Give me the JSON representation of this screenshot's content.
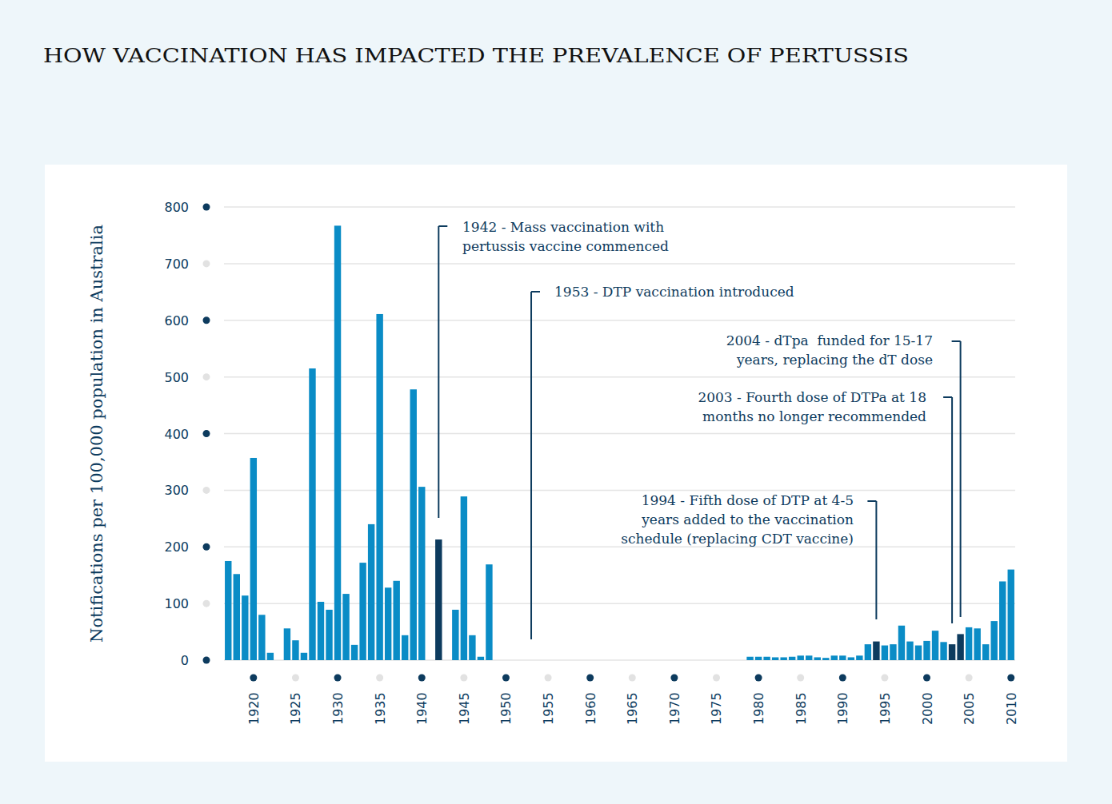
{
  "chart_data": {
    "type": "bar",
    "title": "HOW VACCINATION HAS IMPACTED THE PREVALENCE OF PERTUSSIS",
    "y_label": "Notifications per 100,000 population in Australia",
    "x": [
      1917,
      1918,
      1919,
      1920,
      1921,
      1922,
      1923,
      1924,
      1925,
      1926,
      1927,
      1928,
      1929,
      1930,
      1931,
      1932,
      1933,
      1934,
      1935,
      1936,
      1937,
      1938,
      1939,
      1940,
      1941,
      1942,
      1943,
      1944,
      1945,
      1946,
      1947,
      1948,
      1949,
      1950,
      1951,
      1952,
      1953,
      1954,
      1955,
      1956,
      1957,
      1958,
      1959,
      1960,
      1961,
      1962,
      1963,
      1964,
      1965,
      1966,
      1967,
      1968,
      1969,
      1970,
      1971,
      1972,
      1973,
      1974,
      1975,
      1976,
      1977,
      1978,
      1979,
      1980,
      1981,
      1982,
      1983,
      1984,
      1985,
      1986,
      1987,
      1988,
      1989,
      1990,
      1991,
      1992,
      1993,
      1994,
      1995,
      1996,
      1997,
      1998,
      1999,
      2000,
      2001,
      2002,
      2003,
      2004,
      2005,
      2006,
      2007,
      2008,
      2009,
      2010
    ],
    "values": [
      175,
      152,
      114,
      357,
      80,
      13,
      null,
      56,
      35,
      13,
      515,
      103,
      89,
      767,
      117,
      27,
      172,
      240,
      611,
      128,
      140,
      44,
      478,
      306,
      null,
      213,
      null,
      89,
      289,
      44,
      6,
      169,
      null,
      null,
      null,
      null,
      null,
      null,
      null,
      null,
      null,
      null,
      null,
      null,
      null,
      null,
      null,
      null,
      null,
      null,
      null,
      null,
      null,
      null,
      null,
      null,
      null,
      null,
      null,
      null,
      null,
      null,
      6,
      6,
      6,
      5,
      5,
      6,
      8,
      8,
      5,
      4,
      8,
      8,
      5,
      8,
      28,
      33,
      26,
      28,
      61,
      33,
      26,
      34,
      52,
      32,
      28,
      46,
      58,
      56,
      28,
      69,
      139,
      160
    ],
    "colors": [
      "#0a8cc6",
      "#0a8cc6",
      "#0a8cc6",
      "#0a8cc6",
      "#0a8cc6",
      "#0a8cc6",
      "#0a8cc6",
      "#0a8cc6",
      "#0a8cc6",
      "#0a8cc6",
      "#0a8cc6",
      "#0a8cc6",
      "#0a8cc6",
      "#0a8cc6",
      "#0a8cc6",
      "#0a8cc6",
      "#0a8cc6",
      "#0a8cc6",
      "#0a8cc6",
      "#0a8cc6",
      "#0a8cc6",
      "#0a8cc6",
      "#0a8cc6",
      "#0a8cc6",
      "#0a8cc6",
      "#0d3b5e",
      "#0a8cc6",
      "#0a8cc6",
      "#0a8cc6",
      "#0a8cc6",
      "#0a8cc6",
      "#0a8cc6",
      "#0a8cc6",
      "#0a8cc6",
      "#0a8cc6",
      "#0a8cc6",
      "#0a8cc6",
      "#0a8cc6",
      "#0a8cc6",
      "#0a8cc6",
      "#0a8cc6",
      "#0a8cc6",
      "#0a8cc6",
      "#0a8cc6",
      "#0a8cc6",
      "#0a8cc6",
      "#0a8cc6",
      "#0a8cc6",
      "#0a8cc6",
      "#0a8cc6",
      "#0a8cc6",
      "#0a8cc6",
      "#0a8cc6",
      "#0a8cc6",
      "#0a8cc6",
      "#0a8cc6",
      "#0a8cc6",
      "#0a8cc6",
      "#0a8cc6",
      "#0a8cc6",
      "#0a8cc6",
      "#0a8cc6",
      "#0a8cc6",
      "#0a8cc6",
      "#0a8cc6",
      "#0a8cc6",
      "#0a8cc6",
      "#0a8cc6",
      "#0a8cc6",
      "#0a8cc6",
      "#0a8cc6",
      "#0a8cc6",
      "#0a8cc6",
      "#0a8cc6",
      "#0a8cc6",
      "#0a8cc6",
      "#0a8cc6",
      "#0d3b5e",
      "#0a8cc6",
      "#0a8cc6",
      "#0a8cc6",
      "#0a8cc6",
      "#0a8cc6",
      "#0a8cc6",
      "#0a8cc6",
      "#0a8cc6",
      "#0d3b5e",
      "#0d3b5e",
      "#0a8cc6",
      "#0a8cc6",
      "#0a8cc6",
      "#0a8cc6",
      "#0a8cc6",
      "#0a8cc6"
    ],
    "xlim": [
      1916.5,
      2010.5
    ],
    "xticks": [
      1920,
      1925,
      1930,
      1935,
      1940,
      1945,
      1950,
      1955,
      1960,
      1965,
      1970,
      1975,
      1980,
      1985,
      1990,
      1995,
      2000,
      2005,
      2010
    ],
    "ylim": [
      0,
      800
    ],
    "yticks": [
      0,
      100,
      200,
      300,
      400,
      500,
      600,
      700,
      800
    ],
    "grid": true,
    "annotations": [
      {
        "x": 1942,
        "text": [
          "1942 - Mass vaccination with",
          "pertussis vaccine commenced"
        ]
      },
      {
        "x": 1953,
        "text": [
          "1953 - DTP vaccination introduced"
        ]
      },
      {
        "x": 2004,
        "text": [
          "2004 - dTpa  funded for 15-17",
          "years, replacing the dT dose"
        ]
      },
      {
        "x": 2003,
        "text": [
          "2003 - Fourth dose of DTPa at 18",
          "months no longer recommended"
        ]
      },
      {
        "x": 1994,
        "text": [
          "1994 - Fifth dose of DTP at 4-5",
          "years added to the vaccination",
          "schedule (replacing CDT vaccine)"
        ]
      }
    ]
  }
}
